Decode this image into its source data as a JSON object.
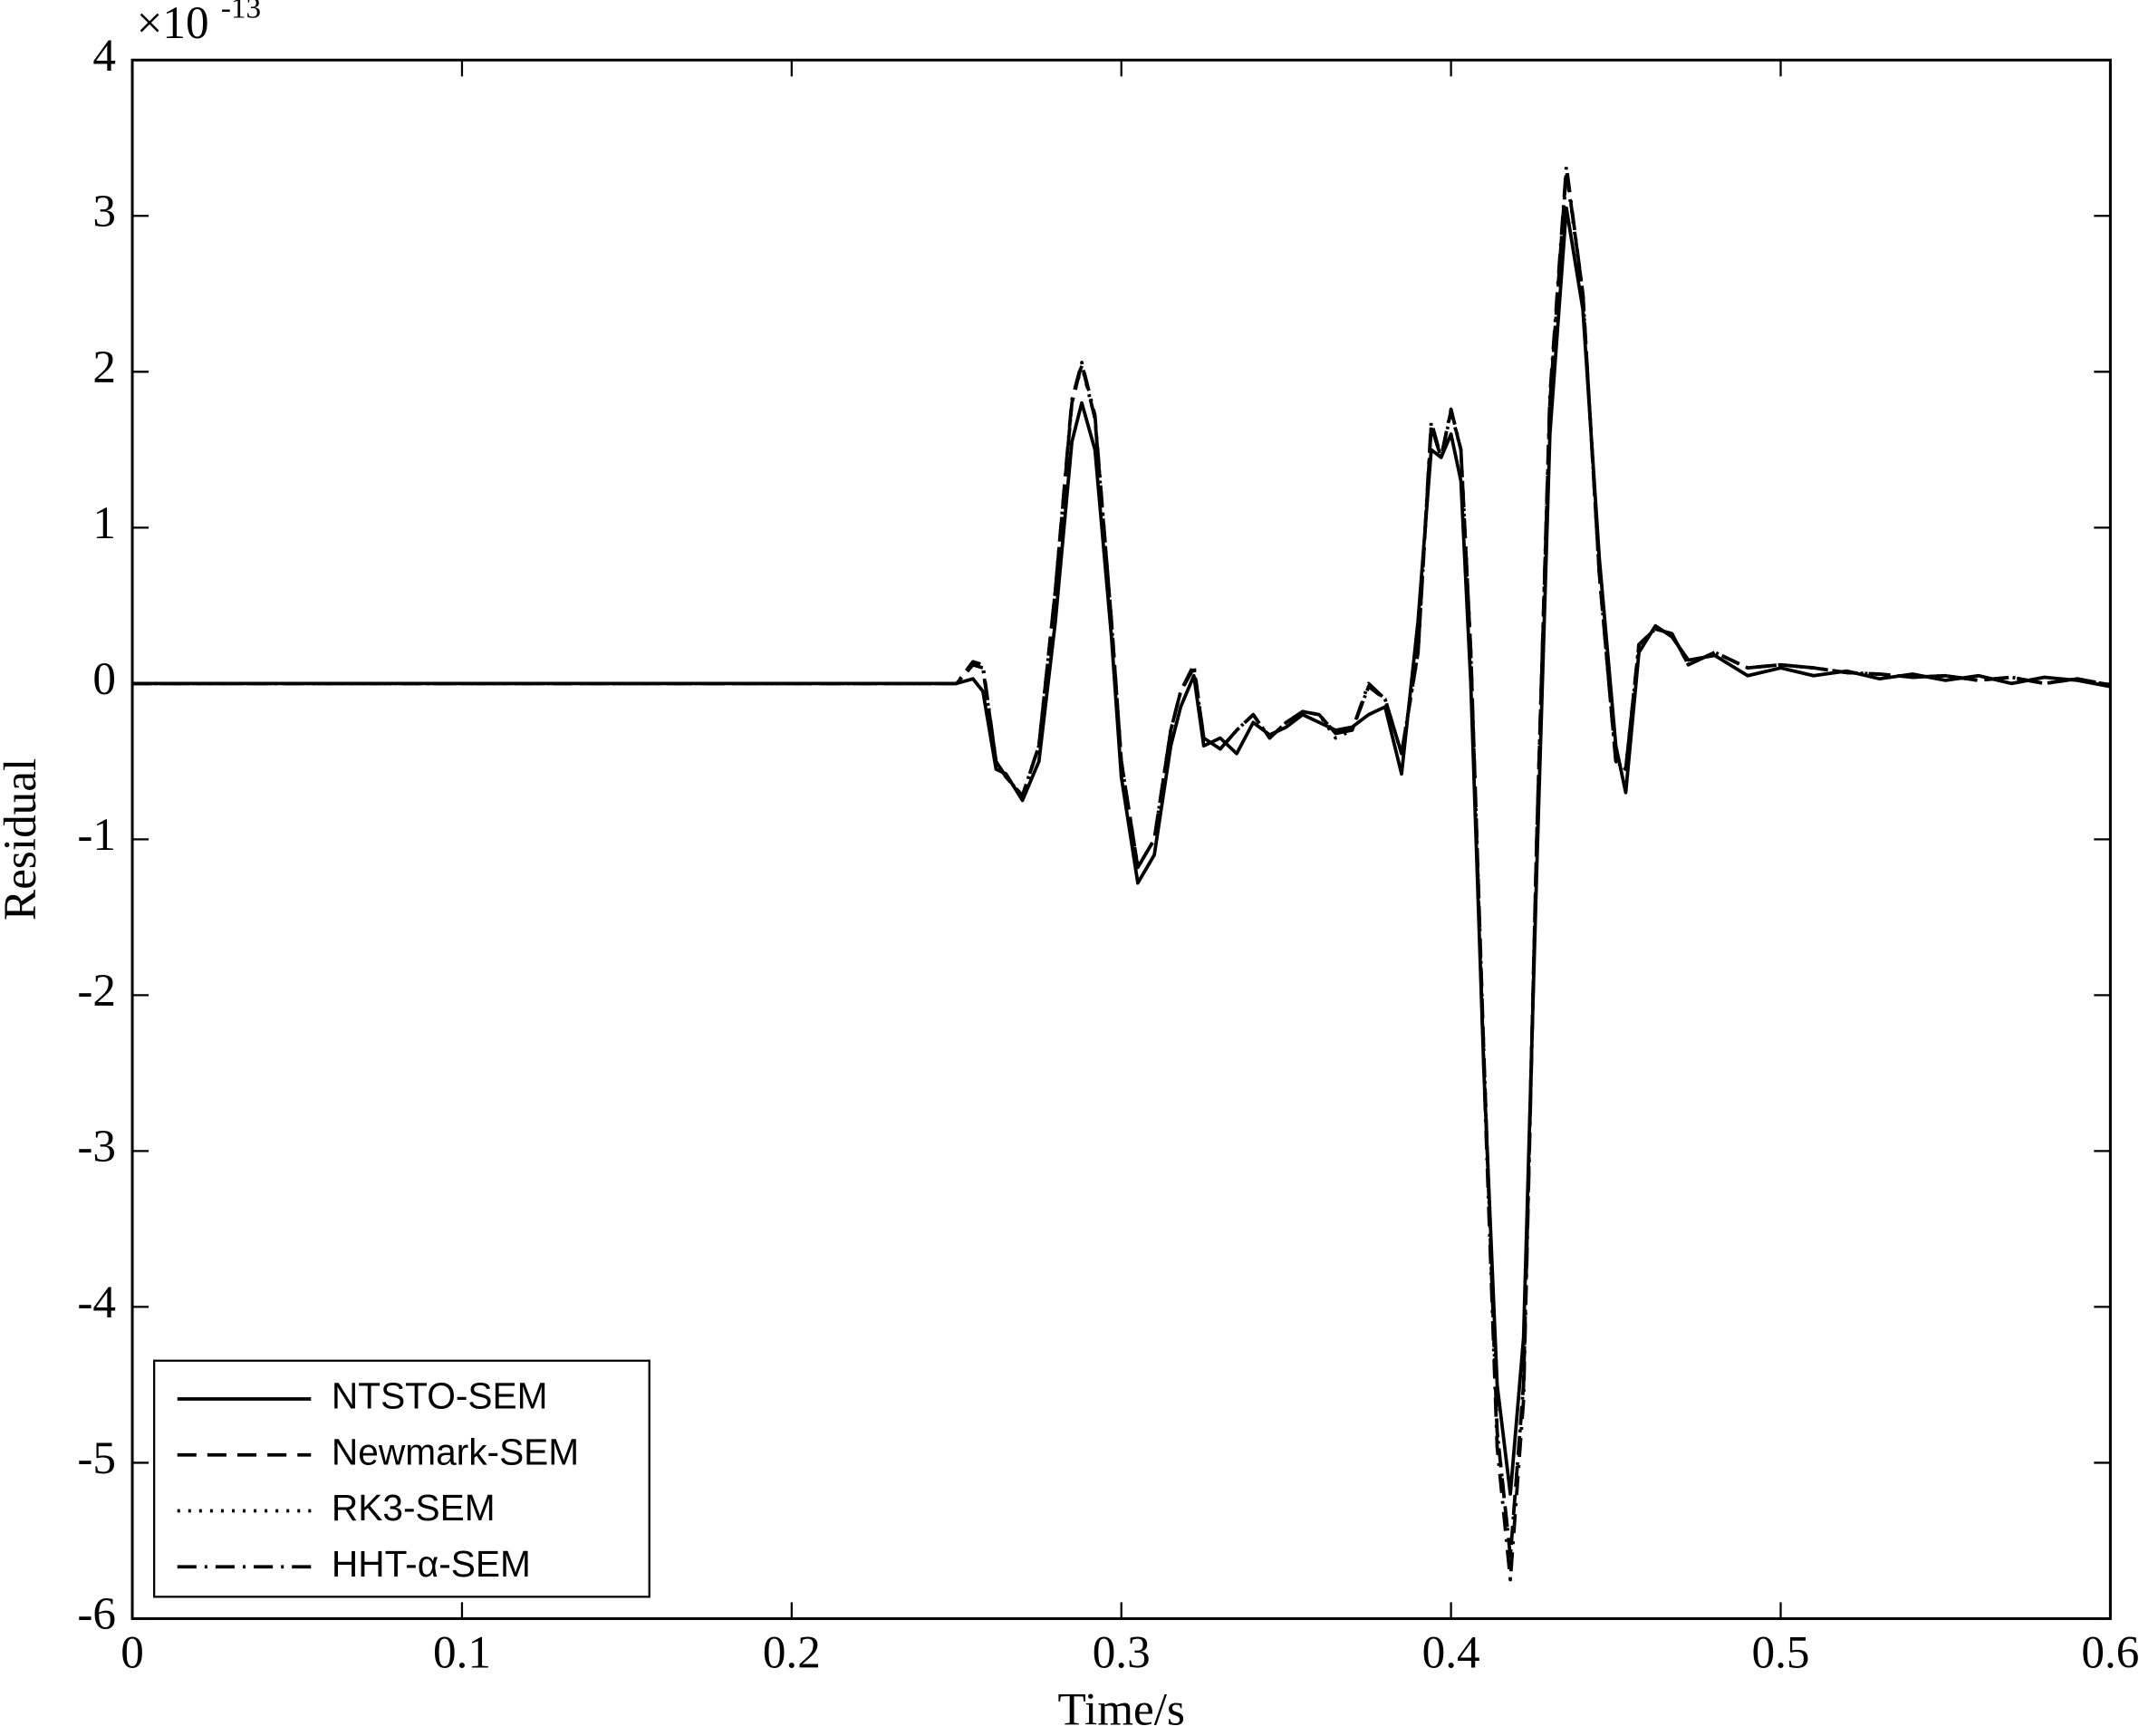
{
  "chart_data": {
    "type": "line",
    "xlabel": "Time/s",
    "ylabel": "Residual",
    "y_scale_label": "×10",
    "y_scale_exponent": "-13",
    "xlim": [
      0,
      0.6
    ],
    "ylim": [
      -6,
      4
    ],
    "xticks": [
      0,
      0.1,
      0.2,
      0.3,
      0.4,
      0.5,
      0.6
    ],
    "yticks": [
      -6,
      -5,
      -4,
      -3,
      -2,
      -1,
      0,
      1,
      2,
      3,
      4
    ],
    "grid": false,
    "legend": "lower left",
    "x": [
      0,
      0.2,
      0.24,
      0.25,
      0.255,
      0.258,
      0.262,
      0.265,
      0.27,
      0.275,
      0.28,
      0.285,
      0.288,
      0.292,
      0.297,
      0.3,
      0.305,
      0.31,
      0.315,
      0.318,
      0.322,
      0.325,
      0.33,
      0.335,
      0.34,
      0.345,
      0.35,
      0.355,
      0.36,
      0.365,
      0.37,
      0.375,
      0.38,
      0.385,
      0.39,
      0.394,
      0.397,
      0.4,
      0.403,
      0.406,
      0.41,
      0.414,
      0.418,
      0.422,
      0.426,
      0.43,
      0.435,
      0.44,
      0.445,
      0.45,
      0.453,
      0.457,
      0.462,
      0.467,
      0.472,
      0.48,
      0.49,
      0.5,
      0.51,
      0.52,
      0.53,
      0.54,
      0.55,
      0.56,
      0.57,
      0.58,
      0.59,
      0.6
    ],
    "series": [
      {
        "name": "NTSTO-SEM",
        "color": "#000000",
        "linestyle": "-",
        "values": [
          0,
          0,
          0,
          0,
          0.03,
          -0.05,
          -0.55,
          -0.58,
          -0.75,
          -0.5,
          0.4,
          1.55,
          1.8,
          1.5,
          0.3,
          -0.6,
          -1.28,
          -1.1,
          -0.4,
          -0.15,
          0.05,
          -0.4,
          -0.35,
          -0.45,
          -0.25,
          -0.33,
          -0.28,
          -0.2,
          -0.25,
          -0.3,
          -0.28,
          -0.2,
          -0.15,
          -0.58,
          0.4,
          1.5,
          1.45,
          1.6,
          1.3,
          0.0,
          -2.5,
          -4.5,
          -5.2,
          -4.2,
          -1.2,
          1.6,
          3.05,
          2.4,
          0.8,
          -0.4,
          -0.7,
          0.2,
          0.37,
          0.3,
          0.15,
          0.18,
          0.05,
          0.1,
          0.05,
          0.08,
          0.03,
          0.06,
          0.02,
          0.05,
          0.0,
          0.04,
          0.02,
          -0.02
        ]
      },
      {
        "name": "Newmark-SEM",
        "color": "#000000",
        "linestyle": "--",
        "values": [
          0,
          0,
          0,
          0,
          0.12,
          0.1,
          -0.5,
          -0.6,
          -0.72,
          -0.4,
          0.6,
          1.8,
          2.05,
          1.7,
          0.4,
          -0.5,
          -1.18,
          -1.0,
          -0.3,
          -0.05,
          0.1,
          -0.35,
          -0.42,
          -0.3,
          -0.2,
          -0.35,
          -0.25,
          -0.18,
          -0.2,
          -0.32,
          -0.3,
          -0.02,
          -0.1,
          -0.45,
          0.2,
          1.65,
          1.45,
          1.75,
          1.5,
          0.2,
          -2.4,
          -4.8,
          -5.6,
          -4.5,
          -1.0,
          1.8,
          3.3,
          2.5,
          0.7,
          -0.5,
          -0.55,
          0.25,
          0.35,
          0.32,
          0.12,
          0.2,
          0.1,
          0.12,
          0.1,
          0.07,
          0.06,
          0.04,
          0.05,
          0.02,
          0.04,
          0.0,
          0.03,
          -0.01
        ]
      },
      {
        "name": "RK3-SEM",
        "color": "#000000",
        "linestyle": ":",
        "values": [
          0,
          0,
          0,
          0,
          0.12,
          0.1,
          -0.5,
          -0.6,
          -0.72,
          -0.4,
          0.6,
          1.8,
          2.04,
          1.7,
          0.4,
          -0.5,
          -1.18,
          -1.0,
          -0.3,
          -0.05,
          0.1,
          -0.35,
          -0.42,
          -0.3,
          -0.2,
          -0.35,
          -0.25,
          -0.18,
          -0.2,
          -0.35,
          -0.3,
          -0.02,
          -0.1,
          -0.45,
          0.2,
          1.65,
          1.45,
          1.74,
          1.5,
          0.2,
          -2.4,
          -4.8,
          -5.6,
          -4.5,
          -1.0,
          1.8,
          3.28,
          2.5,
          0.7,
          -0.5,
          -0.55,
          0.25,
          0.35,
          0.32,
          0.12,
          0.2,
          0.1,
          0.12,
          0.1,
          0.07,
          0.06,
          0.04,
          0.05,
          0.02,
          0.04,
          0.0,
          0.03,
          -0.01
        ]
      },
      {
        "name": "HHT-α-SEM",
        "color": "#000000",
        "linestyle": "-.",
        "values": [
          0,
          0,
          0,
          0,
          0.14,
          0.12,
          -0.5,
          -0.6,
          -0.72,
          -0.4,
          0.6,
          1.82,
          2.06,
          1.72,
          0.4,
          -0.5,
          -1.18,
          -1.0,
          -0.3,
          -0.05,
          0.12,
          -0.35,
          -0.42,
          -0.3,
          -0.2,
          -0.35,
          -0.25,
          -0.18,
          -0.2,
          -0.32,
          -0.3,
          0.0,
          -0.1,
          -0.45,
          0.2,
          1.68,
          1.45,
          1.76,
          1.5,
          0.2,
          -2.5,
          -4.9,
          -5.75,
          -4.6,
          -1.0,
          1.85,
          3.32,
          2.5,
          0.7,
          -0.5,
          -0.55,
          0.25,
          0.35,
          0.32,
          0.12,
          0.2,
          0.1,
          0.12,
          0.1,
          0.07,
          0.06,
          0.04,
          0.05,
          0.02,
          0.04,
          0.0,
          0.03,
          -0.01
        ]
      }
    ]
  }
}
